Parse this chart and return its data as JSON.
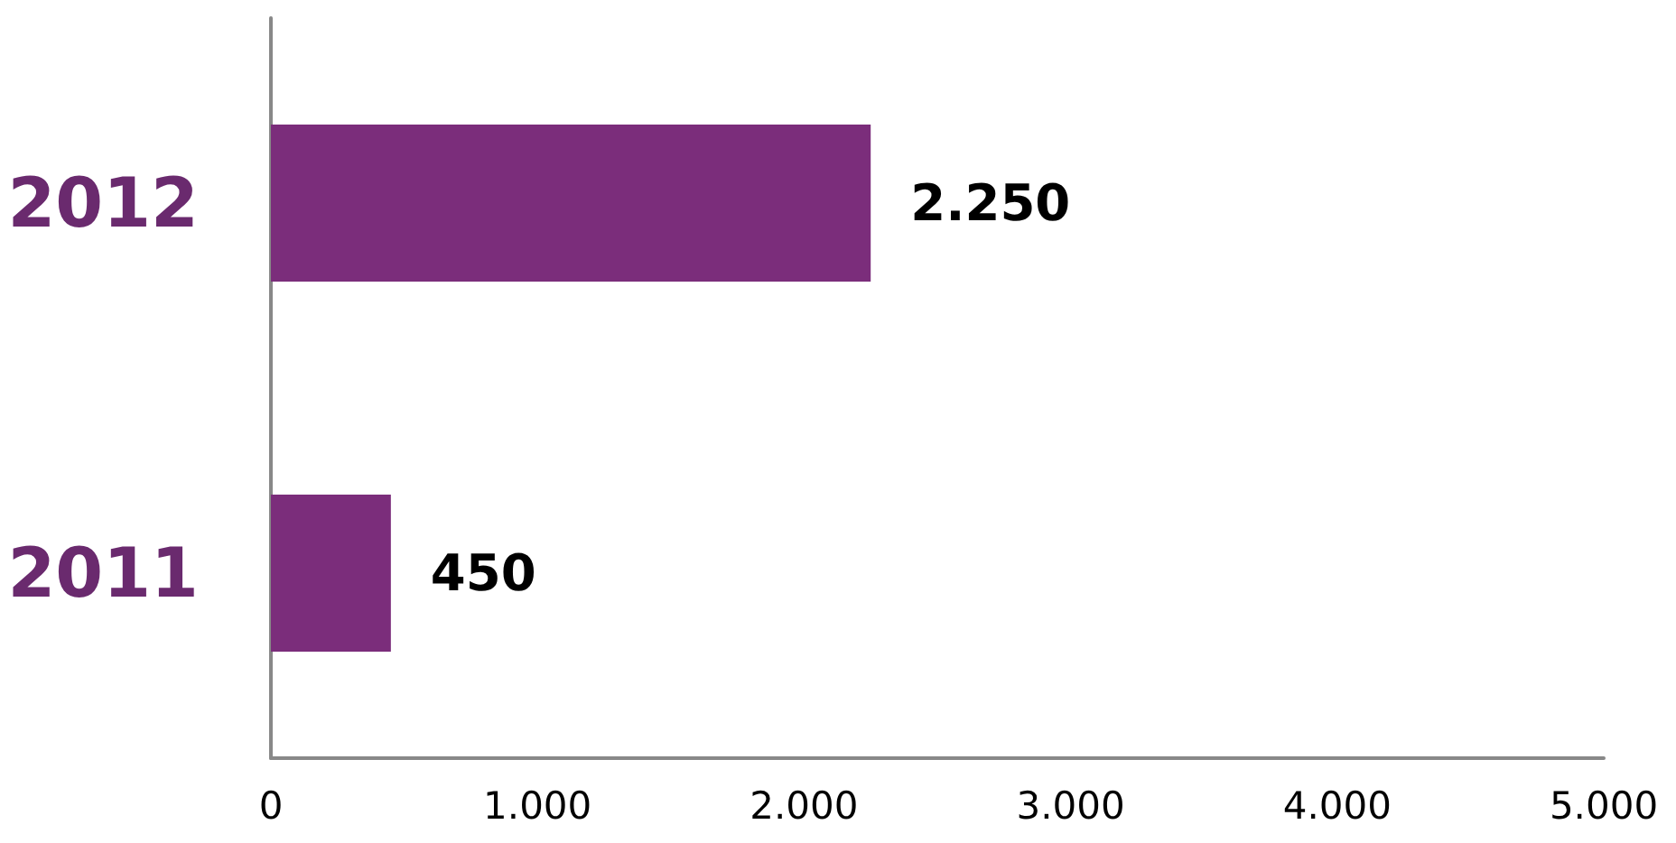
{
  "chart_data": {
    "type": "bar",
    "orientation": "horizontal",
    "categories": [
      "2012",
      "2011"
    ],
    "series": [
      {
        "color": "#7b2d7b",
        "values": [
          2250,
          450
        ],
        "value_labels": [
          "2.250",
          "450"
        ]
      }
    ],
    "xlim": [
      0,
      5000
    ],
    "xticks": [
      {
        "value": 0,
        "label": "0"
      },
      {
        "value": 1000,
        "label": "1.000"
      },
      {
        "value": 2000,
        "label": "2.000"
      },
      {
        "value": 3000,
        "label": "3.000"
      },
      {
        "value": 4000,
        "label": "4.000"
      },
      {
        "value": 5000,
        "label": "5.000"
      }
    ],
    "grid": false
  }
}
